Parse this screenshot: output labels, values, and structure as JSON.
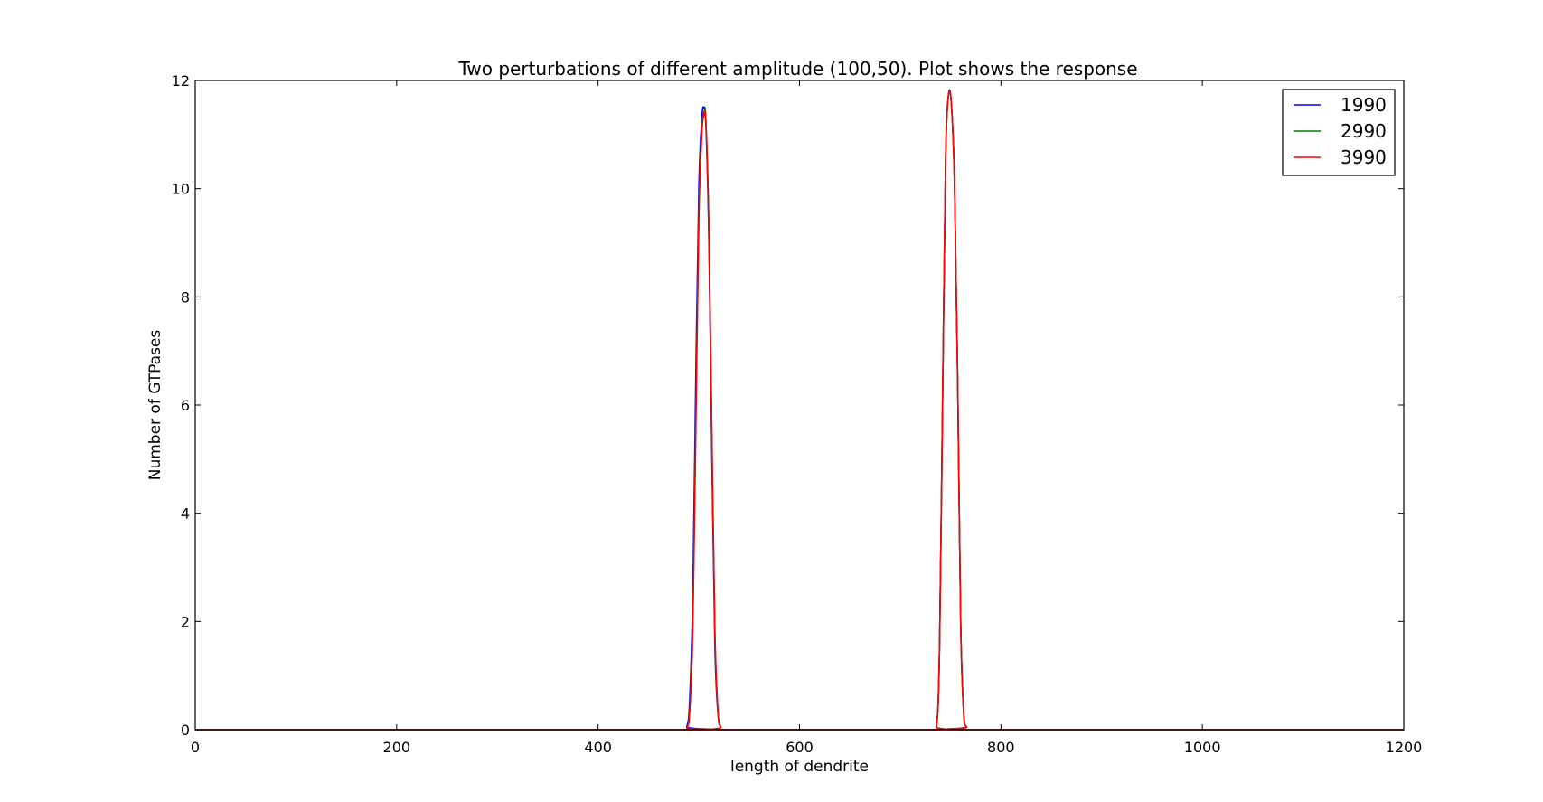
{
  "chart_data": {
    "type": "line",
    "title": "Two perturbations of different amplitude (100,50). Plot shows the response",
    "xlabel": "length of dendrite",
    "ylabel": "Number of GTPases",
    "xlim": [
      0,
      1200
    ],
    "ylim": [
      0,
      12
    ],
    "xticks": [
      0,
      200,
      400,
      600,
      800,
      1000,
      1200
    ],
    "yticks": [
      0,
      2,
      4,
      6,
      8,
      10,
      12
    ],
    "grid": false,
    "legend_position": "top-right",
    "series": [
      {
        "name": "1990",
        "color": "#0000ff",
        "x": [
          0,
          480,
          488,
          491,
          494,
          497,
          500,
          503,
          505,
          507,
          510,
          513,
          516,
          519,
          522,
          530,
          730,
          736,
          739,
          742,
          745,
          748,
          751,
          754,
          757,
          760,
          763,
          766,
          770,
          1200
        ],
        "y": [
          0,
          0,
          0.05,
          0.6,
          2.5,
          6.5,
          10.0,
          11.3,
          11.5,
          11.2,
          9.0,
          5.0,
          1.5,
          0.3,
          0.05,
          0,
          0,
          0.05,
          1.5,
          6.0,
          10.5,
          11.75,
          11.5,
          10.0,
          6.5,
          2.0,
          0.3,
          0.05,
          0,
          0
        ]
      },
      {
        "name": "2990",
        "color": "#008000",
        "x": [
          0,
          480,
          488,
          491,
          494,
          497,
          500,
          503,
          505,
          507,
          510,
          513,
          516,
          519,
          522,
          530,
          730,
          736,
          739,
          742,
          745,
          748,
          751,
          754,
          757,
          760,
          763,
          766,
          770,
          1200
        ],
        "y": [
          0,
          0,
          0.03,
          0.4,
          2.0,
          5.8,
          9.6,
          11.1,
          11.4,
          11.25,
          9.2,
          5.3,
          1.7,
          0.35,
          0.05,
          0,
          0,
          0.05,
          1.5,
          6.0,
          10.5,
          11.75,
          11.5,
          10.0,
          6.5,
          2.0,
          0.3,
          0.05,
          0,
          0
        ]
      },
      {
        "name": "3990",
        "color": "#ff0000",
        "x": [
          0,
          480,
          488,
          491,
          494,
          497,
          500,
          503,
          505,
          507,
          510,
          513,
          516,
          519,
          522,
          530,
          730,
          736,
          739,
          742,
          745,
          748,
          751,
          754,
          757,
          760,
          763,
          766,
          770,
          1200
        ],
        "y": [
          0,
          0,
          0.03,
          0.35,
          1.8,
          5.5,
          9.4,
          11.0,
          11.35,
          11.25,
          9.3,
          5.4,
          1.8,
          0.35,
          0.05,
          0,
          0,
          0.05,
          1.5,
          6.0,
          10.5,
          11.75,
          11.5,
          10.0,
          6.5,
          2.0,
          0.3,
          0.05,
          0,
          0
        ]
      }
    ]
  }
}
